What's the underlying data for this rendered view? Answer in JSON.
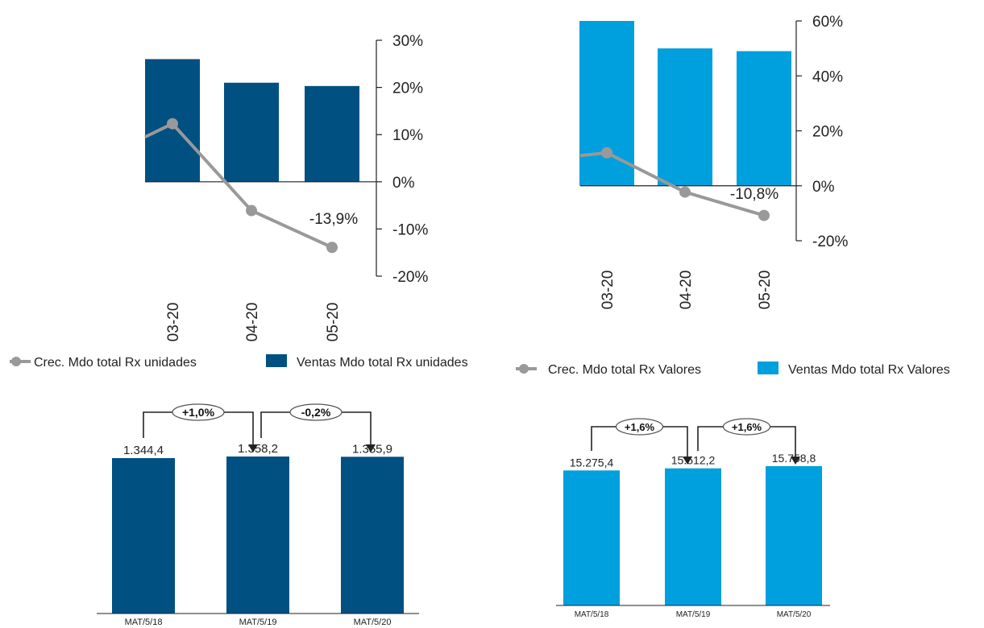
{
  "colors": {
    "dark_bar": "#005082",
    "light_bar": "#009fdd",
    "line": "#999999",
    "axis": "#222222",
    "callout_border": "#555555"
  },
  "chart_data": [
    {
      "type": "bar",
      "name": "top-left",
      "categories": [
        "03-20",
        "04-20",
        "05-20"
      ],
      "series": [
        {
          "name": "Ventas Mdo total Rx unidades",
          "type": "bar",
          "values": [
            26,
            21,
            20.3
          ],
          "color": "#005082"
        },
        {
          "name": "Crec. Mdo total Rx unidades",
          "type": "line",
          "values": [
            12.3,
            -6.1,
            -13.9
          ],
          "lead_in": 9.5,
          "color": "#999999"
        }
      ],
      "ylim": [
        -20,
        30
      ],
      "yticks": [
        "30%",
        "20%",
        "10%",
        "0%",
        "-10%",
        "-20%"
      ],
      "data_labels": {
        "last_point": "-13,9%"
      },
      "legend": [
        {
          "label": "Crec. Mdo total Rx unidades",
          "kind": "line"
        },
        {
          "label": "Ventas Mdo total Rx unidades",
          "kind": "bar"
        }
      ]
    },
    {
      "type": "bar",
      "name": "top-right",
      "categories": [
        "03-20",
        "04-20",
        "05-20"
      ],
      "series": [
        {
          "name": "Ventas Mdo total Rx Valores",
          "type": "bar",
          "values": [
            60,
            50,
            49
          ],
          "color": "#009fdd"
        },
        {
          "name": "Crec. Mdo total Rx Valores",
          "type": "line",
          "values": [
            12,
            -2.3,
            -10.8
          ],
          "lead_in": 11,
          "color": "#999999"
        }
      ],
      "ylim": [
        -20,
        60
      ],
      "yticks": [
        "60%",
        "40%",
        "20%",
        "0%",
        "-20%"
      ],
      "data_labels": {
        "last_point": "-10,8%"
      },
      "legend": [
        {
          "label": "Crec. Mdo total Rx Valores",
          "kind": "line"
        },
        {
          "label": "Ventas Mdo total Rx Valores",
          "kind": "bar"
        }
      ]
    },
    {
      "type": "bar",
      "name": "bottom-left",
      "categories": [
        "MAT/5/18",
        "MAT/5/19",
        "MAT/5/20"
      ],
      "values": [
        1344.4,
        1358.2,
        1355.9
      ],
      "value_labels": [
        "1.344,4",
        "1.358,2",
        "1.355,9"
      ],
      "growth_labels": [
        "+1,0%",
        "-0,2%"
      ],
      "color": "#005082"
    },
    {
      "type": "bar",
      "name": "bottom-right",
      "categories": [
        "MAT/5/18",
        "MAT/5/19",
        "MAT/5/20"
      ],
      "values": [
        15275.4,
        15512.2,
        15758.8
      ],
      "value_labels": [
        "15.275,4",
        "15.512,2",
        "15.758,8"
      ],
      "growth_labels": [
        "+1,6%",
        "+1,6%"
      ],
      "color": "#009fdd"
    }
  ]
}
